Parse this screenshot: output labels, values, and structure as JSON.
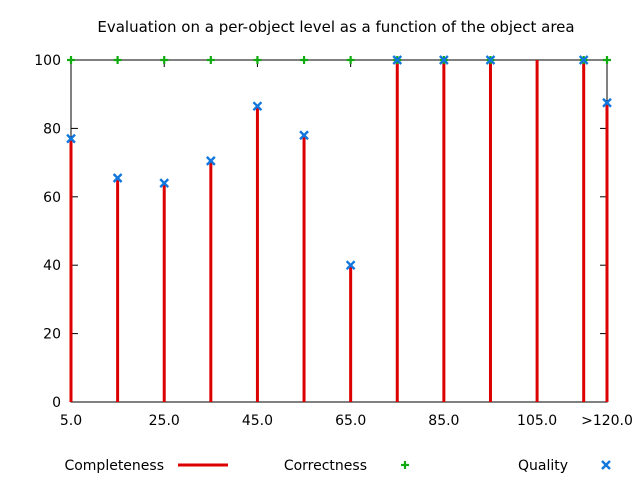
{
  "chart_data": {
    "type": "bar",
    "title": "Evaluation on a per-object level as a function of the object area",
    "xlabel": "",
    "ylabel": "",
    "x": [
      5,
      15,
      25,
      35,
      45,
      55,
      65,
      75,
      85,
      95,
      105,
      115,
      120
    ],
    "xlim": [
      5,
      120
    ],
    "ylim": [
      0,
      100
    ],
    "x_ticks": [
      5,
      25,
      45,
      65,
      85,
      105,
      120
    ],
    "x_tick_labels": [
      "5.0",
      "25.0",
      "45.0",
      "65.0",
      "85.0",
      "105.0",
      ">120.0"
    ],
    "y_ticks": [
      0,
      20,
      40,
      60,
      80,
      100
    ],
    "y_tick_labels": [
      "0",
      "20",
      "40",
      "60",
      "80",
      "100"
    ],
    "grid": false,
    "legend_position": "bottom",
    "series": [
      {
        "name": "Completeness",
        "style": "impulses",
        "color": "#dd0000",
        "values": [
          77,
          65.5,
          64,
          70.5,
          86.5,
          78,
          40,
          100,
          100,
          100,
          100,
          100,
          87.5
        ]
      },
      {
        "name": "Correctness",
        "style": "plus",
        "color": "#11aa11",
        "values": [
          100,
          100,
          100,
          100,
          100,
          100,
          100,
          100,
          100,
          100,
          null,
          100,
          100
        ]
      },
      {
        "name": "Quality",
        "style": "cross",
        "color": "#1177dd",
        "values": [
          77,
          65.5,
          64,
          70.5,
          86.5,
          78,
          40,
          100,
          100,
          100,
          null,
          100,
          87.5
        ]
      }
    ]
  }
}
